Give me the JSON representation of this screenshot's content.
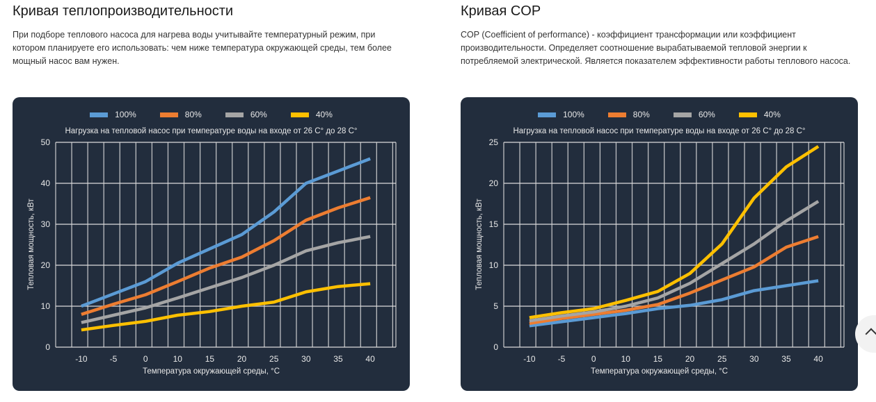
{
  "sections": [
    {
      "title": "Кривая теплопроизводительности",
      "description": "При подборе теплового насоса для нагрева воды учитывайте температурный режим, при котором планируете его использовать: чем ниже температура окружающей среды, тем более мощный насос вам нужен."
    },
    {
      "title": "Кривая COP",
      "description": "COP (Coefficient of performance) - коэффициент трансформации или коэффициент производительности. Определяет соотношение вырабатываемой тепловой энергии к потребляемой электрической. Является показателем эффективности работы теплового насоса."
    }
  ],
  "colors": {
    "panel_bg": "#222d3d",
    "grid": "#d9d9d9",
    "series_100": "#5b9bd5",
    "series_80": "#ed7d31",
    "series_60": "#a5a5a5",
    "series_40": "#ffc000"
  },
  "scroll_top_button": {
    "icon": "chevron-up-icon"
  },
  "chart_data": [
    {
      "type": "line",
      "title": "Нагрузка на тепловой насос при температуре воды на входе от 26 С° до 28 С°",
      "xlabel": "Температура окружающей среды, °C",
      "ylabel": "Тепловая мощность, кВт",
      "categories": [
        "-10",
        "-5",
        "0",
        "10",
        "15",
        "20",
        "25",
        "30",
        "35",
        "40"
      ],
      "yticks": [
        0,
        10,
        20,
        30,
        40,
        50
      ],
      "ylim": [
        0,
        50
      ],
      "grid": true,
      "legend_position": "top",
      "series": [
        {
          "name": "100%",
          "color": "#5b9bd5",
          "values": [
            10,
            13,
            16,
            20.5,
            24,
            27.5,
            33,
            40,
            43,
            46
          ]
        },
        {
          "name": "80%",
          "color": "#ed7d31",
          "values": [
            8,
            10.5,
            12.8,
            16,
            19.3,
            22,
            26,
            31,
            34,
            36.5
          ]
        },
        {
          "name": "60%",
          "color": "#a5a5a5",
          "values": [
            6,
            7.8,
            9.6,
            12,
            14.5,
            17,
            20,
            23.5,
            25.5,
            27
          ]
        },
        {
          "name": "40%",
          "color": "#ffc000",
          "values": [
            4.2,
            5.3,
            6.3,
            7.8,
            8.7,
            10,
            11,
            13.5,
            14.8,
            15.5
          ]
        }
      ]
    },
    {
      "type": "line",
      "title": "Нагрузка на тепловой насос при температуре воды на входе от 26 С° до 28 С°",
      "xlabel": "Температура окружающей среды, °C",
      "ylabel": "Тепловая мощность, кВт",
      "categories": [
        "-10",
        "-5",
        "0",
        "10",
        "15",
        "20",
        "25",
        "30",
        "35",
        "40"
      ],
      "yticks": [
        0,
        5,
        10,
        15,
        20,
        25
      ],
      "ylim": [
        0,
        25
      ],
      "grid": true,
      "legend_position": "top",
      "series": [
        {
          "name": "100%",
          "color": "#5b9bd5",
          "values": [
            2.6,
            3.1,
            3.6,
            4.1,
            4.7,
            5.1,
            5.8,
            6.9,
            7.5,
            8.1
          ]
        },
        {
          "name": "80%",
          "color": "#ed7d31",
          "values": [
            2.9,
            3.5,
            4.0,
            4.5,
            5.2,
            6.6,
            8.2,
            9.8,
            12.2,
            13.5
          ]
        },
        {
          "name": "60%",
          "color": "#a5a5a5",
          "values": [
            3.2,
            3.8,
            4.3,
            5.0,
            6.0,
            7.8,
            10.2,
            12.6,
            15.4,
            17.8
          ]
        },
        {
          "name": "40%",
          "color": "#ffc000",
          "values": [
            3.6,
            4.2,
            4.7,
            5.7,
            6.8,
            9.0,
            12.6,
            18.2,
            22.0,
            24.5
          ]
        }
      ]
    }
  ]
}
